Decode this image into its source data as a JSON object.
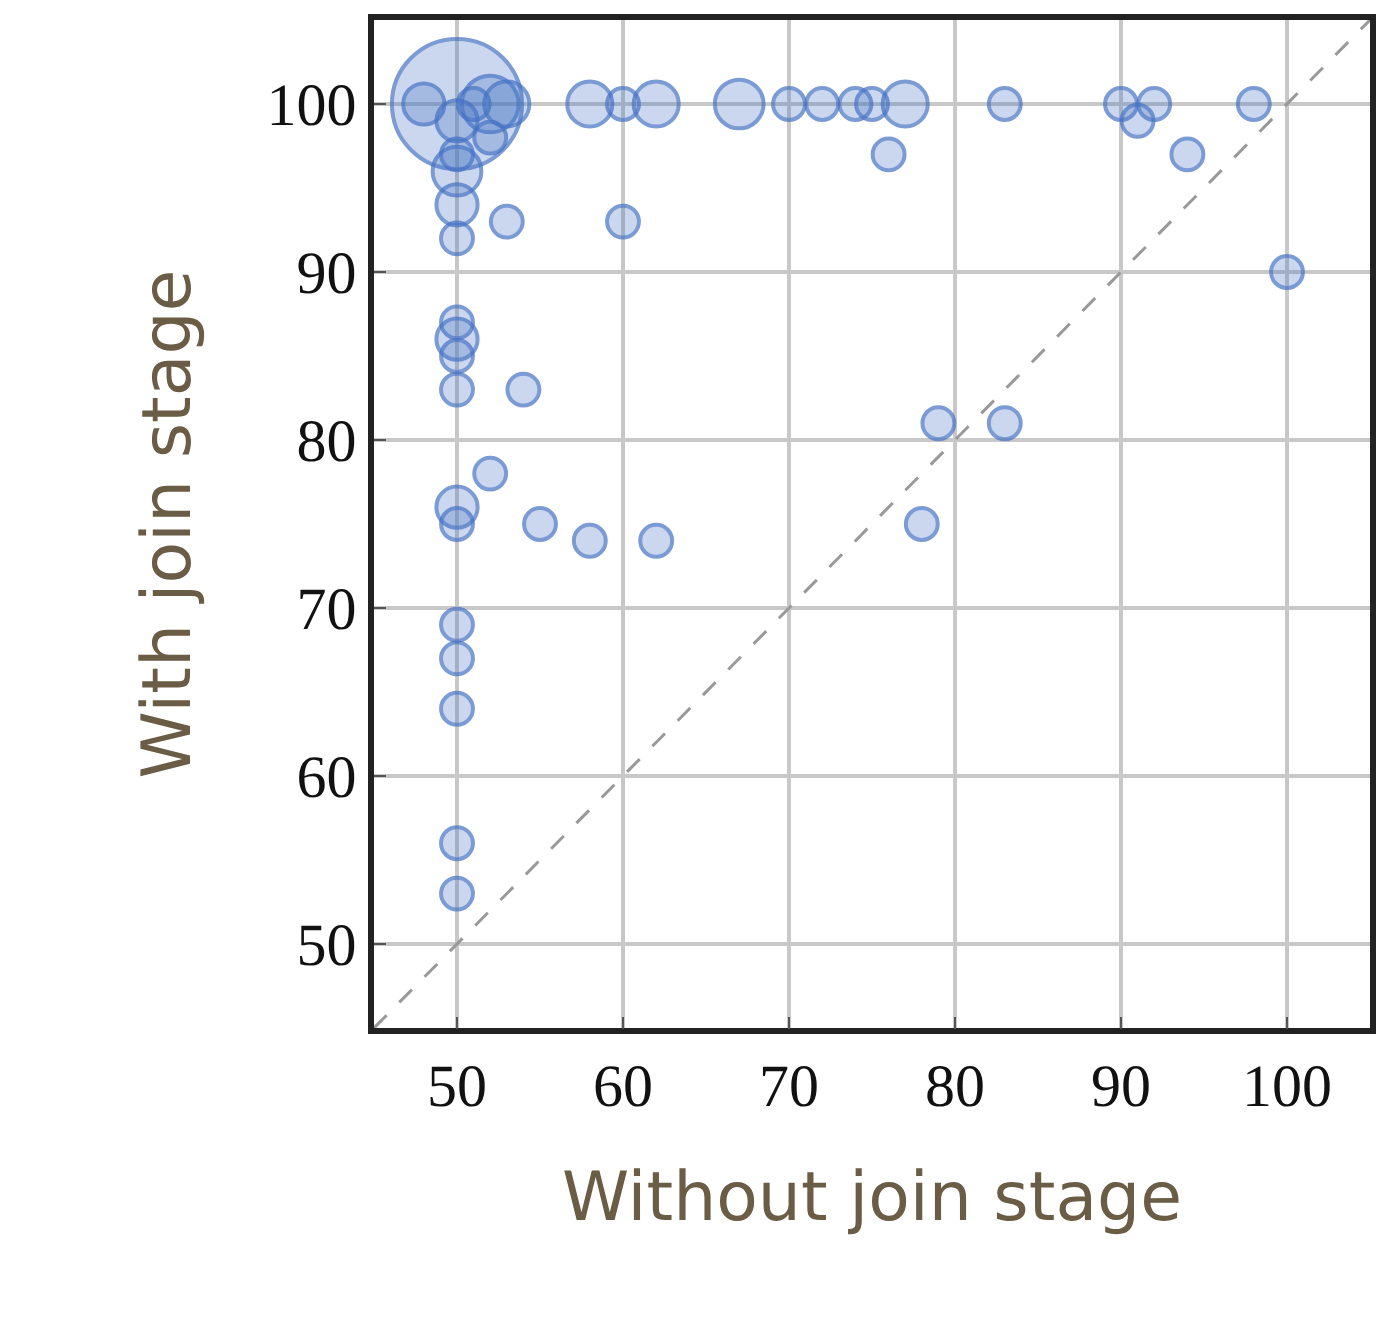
{
  "chart_data": {
    "type": "bubble",
    "xlabel": "Without join stage",
    "ylabel": "With join stage",
    "xlim": [
      45,
      105
    ],
    "ylim": [
      45,
      105
    ],
    "xticks": [
      50,
      60,
      70,
      80,
      90,
      100
    ],
    "yticks": [
      50,
      60,
      70,
      80,
      90,
      100
    ],
    "grid": true,
    "series": [
      {
        "color": "#4472c4",
        "marker": "circle",
        "x": [
          50,
          48,
          51,
          52,
          53,
          50,
          52,
          50,
          50,
          50,
          50,
          53,
          60,
          58,
          60,
          62,
          67,
          70,
          72,
          74,
          75,
          77,
          76,
          83,
          90,
          91,
          92,
          94,
          98,
          100,
          50,
          50,
          50,
          50,
          54,
          52,
          50,
          50,
          55,
          58,
          62,
          79,
          83,
          78,
          50,
          50,
          50,
          50,
          50
        ],
        "values": [
          100,
          100,
          100,
          100,
          100,
          99,
          98,
          97,
          96,
          94,
          92,
          93,
          93,
          100,
          100,
          100,
          100,
          100,
          100,
          100,
          100,
          100,
          97,
          100,
          100,
          99,
          100,
          97,
          100,
          90,
          87,
          86,
          85,
          83,
          83,
          78,
          76,
          75,
          75,
          74,
          74,
          81,
          81,
          75,
          69,
          67,
          64,
          56,
          53
        ],
        "sizes": [
          1,
          0.1,
          0.06,
          0.19,
          0.12,
          0.1,
          0.06,
          0.06,
          0.14,
          0.1,
          0.06,
          0.06,
          0.06,
          0.12,
          0.06,
          0.12,
          0.14,
          0.06,
          0.06,
          0.06,
          0.06,
          0.12,
          0.06,
          0.06,
          0.06,
          0.06,
          0.06,
          0.06,
          0.06,
          0.06,
          0.06,
          0.1,
          0.06,
          0.06,
          0.06,
          0.06,
          0.1,
          0.06,
          0.06,
          0.06,
          0.06,
          0.06,
          0.06,
          0.06,
          0.06,
          0.06,
          0.06,
          0.06,
          0.06
        ]
      },
      {
        "type": "line",
        "color": "#999999",
        "line_style": "dashed",
        "marker": "none",
        "x": [
          45,
          105
        ],
        "values": [
          45,
          105
        ]
      }
    ]
  }
}
